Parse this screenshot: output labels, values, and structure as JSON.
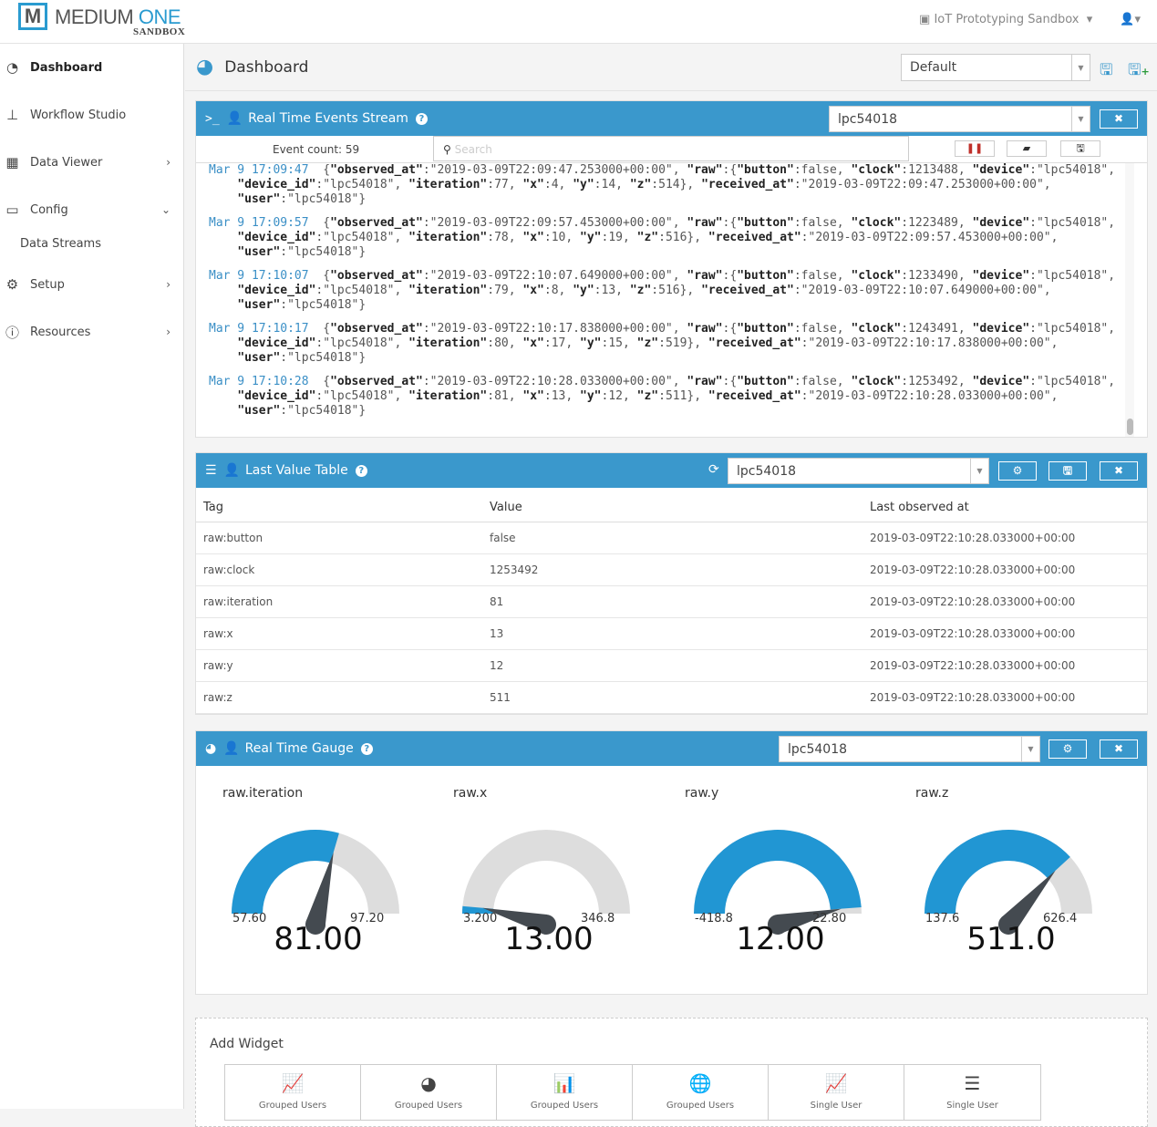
{
  "header": {
    "logo_letter": "M",
    "logo_main": "MEDIUM",
    "logo_accent": "ONE",
    "logo_sub": "SANDBOX",
    "project": "IoT Prototyping Sandbox"
  },
  "sidebar": {
    "items": [
      {
        "label": "Dashboard",
        "icon": "dashboard-icon"
      },
      {
        "label": "Workflow Studio",
        "icon": "sitemap-icon"
      },
      {
        "label": "Data Viewer",
        "icon": "table-icon"
      },
      {
        "label": "Config",
        "icon": "desktop-icon"
      },
      {
        "label": "Data Streams"
      },
      {
        "label": "Setup",
        "icon": "cogs-icon"
      },
      {
        "label": "Resources",
        "icon": "info-icon"
      }
    ]
  },
  "page": {
    "title": "Dashboard",
    "layout_select": "Default"
  },
  "events": {
    "title": "Real Time Events Stream",
    "device": "lpc54018",
    "event_count": "Event count: 59",
    "search_placeholder": "Search",
    "entries": [
      {
        "time": "Mar 9 17:09:47",
        "lines": [
          "{\"observed_at\":\"2019-03-09T22:09:47.253000+00:00\", \"raw\":{\"button\":false, \"clock\":1213488, \"device\":\"lpc54018\",",
          "  \"device_id\":\"lpc54018\", \"iteration\":77, \"x\":4, \"y\":14, \"z\":514}, \"received_at\":\"2019-03-09T22:09:47.253000+00:00\",",
          "  \"user\":\"lpc54018\"}"
        ]
      },
      {
        "time": "Mar 9 17:09:57",
        "lines": [
          "{\"observed_at\":\"2019-03-09T22:09:57.453000+00:00\", \"raw\":{\"button\":false, \"clock\":1223489, \"device\":\"lpc54018\",",
          "  \"device_id\":\"lpc54018\", \"iteration\":78, \"x\":10, \"y\":19, \"z\":516}, \"received_at\":\"2019-03-09T22:09:57.453000+00:00\",",
          "  \"user\":\"lpc54018\"}"
        ]
      },
      {
        "time": "Mar 9 17:10:07",
        "lines": [
          "{\"observed_at\":\"2019-03-09T22:10:07.649000+00:00\", \"raw\":{\"button\":false, \"clock\":1233490, \"device\":\"lpc54018\",",
          "  \"device_id\":\"lpc54018\", \"iteration\":79, \"x\":8, \"y\":13, \"z\":516}, \"received_at\":\"2019-03-09T22:10:07.649000+00:00\",",
          "  \"user\":\"lpc54018\"}"
        ]
      },
      {
        "time": "Mar 9 17:10:17",
        "lines": [
          "{\"observed_at\":\"2019-03-09T22:10:17.838000+00:00\", \"raw\":{\"button\":false, \"clock\":1243491, \"device\":\"lpc54018\",",
          "  \"device_id\":\"lpc54018\", \"iteration\":80, \"x\":17, \"y\":15, \"z\":519}, \"received_at\":\"2019-03-09T22:10:17.838000+00:00\",",
          "  \"user\":\"lpc54018\"}"
        ]
      },
      {
        "time": "Mar 9 17:10:28",
        "lines": [
          "{\"observed_at\":\"2019-03-09T22:10:28.033000+00:00\", \"raw\":{\"button\":false, \"clock\":1253492, \"device\":\"lpc54018\",",
          "  \"device_id\":\"lpc54018\", \"iteration\":81, \"x\":13, \"y\":12, \"z\":511}, \"received_at\":\"2019-03-09T22:10:28.033000+00:00\",",
          "  \"user\":\"lpc54018\"}"
        ]
      }
    ]
  },
  "lvt": {
    "title": "Last Value Table",
    "device": "lpc54018",
    "columns": [
      "Tag",
      "Value",
      "Last observed at"
    ],
    "rows": [
      [
        "raw:button",
        "false",
        "2019-03-09T22:10:28.033000+00:00"
      ],
      [
        "raw:clock",
        "1253492",
        "2019-03-09T22:10:28.033000+00:00"
      ],
      [
        "raw:iteration",
        "81",
        "2019-03-09T22:10:28.033000+00:00"
      ],
      [
        "raw:x",
        "13",
        "2019-03-09T22:10:28.033000+00:00"
      ],
      [
        "raw:y",
        "12",
        "2019-03-09T22:10:28.033000+00:00"
      ],
      [
        "raw:z",
        "511",
        "2019-03-09T22:10:28.033000+00:00"
      ]
    ]
  },
  "gauge": {
    "title": "Real Time Gauge",
    "device": "lpc54018",
    "fill_color": "#2196d3",
    "track_color": "#dddddd",
    "needle_color": "#444a50",
    "items": [
      {
        "label": "raw.iteration",
        "min": 57.6,
        "max": 97.2,
        "min_label": "57.60",
        "max_label": "97.20",
        "value": 81,
        "value_label": "81.00"
      },
      {
        "label": "raw.x",
        "min": 3.2,
        "max": 346.8,
        "min_label": "3.200",
        "max_label": "346.8",
        "value": 13,
        "value_label": "13.00"
      },
      {
        "label": "raw.y",
        "min": -418.8,
        "max": 22.8,
        "min_label": "-418.8",
        "max_label": "22.80",
        "value": 12,
        "value_label": "12.00"
      },
      {
        "label": "raw.z",
        "min": 137.6,
        "max": 626.4,
        "min_label": "137.6",
        "max_label": "626.4",
        "value": 511,
        "value_label": "511.0"
      }
    ]
  },
  "add_widget": {
    "title": "Add Widget",
    "items": [
      {
        "label": "Grouped Users",
        "icon": "line-chart-icon"
      },
      {
        "label": "Grouped Users",
        "icon": "pie-chart-icon"
      },
      {
        "label": "Grouped Users",
        "icon": "bar-chart-icon"
      },
      {
        "label": "Grouped Users",
        "icon": "globe-icon"
      },
      {
        "label": "Single User",
        "icon": "line-chart-icon"
      },
      {
        "label": "Single User",
        "icon": "server-icon"
      }
    ]
  }
}
